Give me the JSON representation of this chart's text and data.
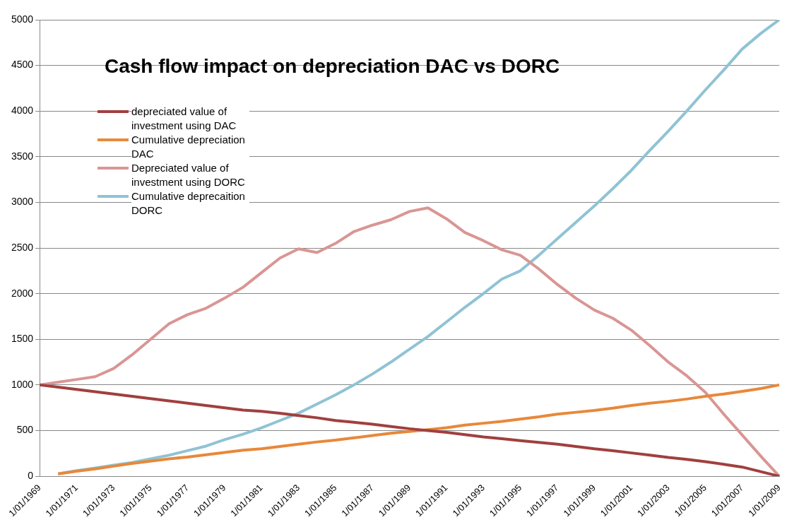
{
  "chart_data": {
    "type": "line",
    "title": "Cash flow impact on depreciation DAC vs DORC",
    "categories": [
      "1/01/1969",
      null,
      "1/01/1971",
      null,
      "1/01/1973",
      null,
      "1/01/1975",
      null,
      "1/01/1977",
      null,
      "1/01/1979",
      null,
      "1/01/1981",
      null,
      "1/01/1983",
      null,
      "1/01/1985",
      null,
      "1/01/1987",
      null,
      "1/01/1989",
      null,
      "1/01/1991",
      null,
      "1/01/1993",
      null,
      "1/01/1995",
      null,
      "1/01/1997",
      null,
      "1/01/1999",
      null,
      "1/01/2001",
      null,
      "1/01/2003",
      null,
      "1/01/2005",
      null,
      "1/01/2007",
      null,
      "1/01/2009"
    ],
    "series": [
      {
        "name": "depreciated value of investment using DAC",
        "color": "#a0403f",
        "values": [
          1000,
          975,
          950,
          925,
          900,
          875,
          850,
          825,
          800,
          775,
          750,
          725,
          710,
          690,
          665,
          640,
          610,
          590,
          570,
          545,
          520,
          500,
          480,
          455,
          430,
          410,
          390,
          370,
          350,
          325,
          300,
          280,
          255,
          230,
          205,
          185,
          160,
          130,
          100,
          50,
          0
        ]
      },
      {
        "name": "Cumulative depreciation DAC",
        "color": "#e8883a",
        "values": [
          null,
          25,
          55,
          80,
          110,
          140,
          165,
          190,
          210,
          235,
          260,
          285,
          300,
          325,
          350,
          375,
          395,
          420,
          445,
          470,
          490,
          510,
          530,
          560,
          580,
          600,
          625,
          650,
          680,
          700,
          720,
          745,
          775,
          800,
          820,
          845,
          875,
          900,
          930,
          960,
          1000
        ]
      },
      {
        "name": "Depreciated value of investment using DORC",
        "color": "#d99694",
        "values": [
          1000,
          1030,
          1060,
          1090,
          1180,
          1330,
          1500,
          1670,
          1770,
          1840,
          1950,
          2070,
          2230,
          2390,
          2490,
          2450,
          2550,
          2680,
          2750,
          2810,
          2900,
          2940,
          2820,
          2670,
          2580,
          2480,
          2420,
          2270,
          2100,
          1950,
          1820,
          1730,
          1600,
          1430,
          1250,
          1100,
          920,
          680,
          450,
          220,
          0
        ]
      },
      {
        "name": "Cumulative deprecaition DORC",
        "color": "#8fc3d4",
        "values": [
          null,
          25,
          60,
          90,
          120,
          150,
          190,
          230,
          280,
          330,
          400,
          460,
          530,
          610,
          690,
          790,
          890,
          1000,
          1120,
          1250,
          1390,
          1530,
          1690,
          1850,
          2000,
          2160,
          2250,
          2420,
          2600,
          2780,
          2960,
          3150,
          3350,
          3570,
          3780,
          4000,
          4230,
          4450,
          4680,
          4850,
          5000
        ]
      }
    ],
    "ylim": [
      0,
      5000
    ],
    "yticks": [
      0,
      500,
      1000,
      1500,
      2000,
      2500,
      3000,
      3500,
      4000,
      4500,
      5000
    ],
    "grid": "y",
    "legend": "top left",
    "marker": "none",
    "line_style": "solid"
  }
}
